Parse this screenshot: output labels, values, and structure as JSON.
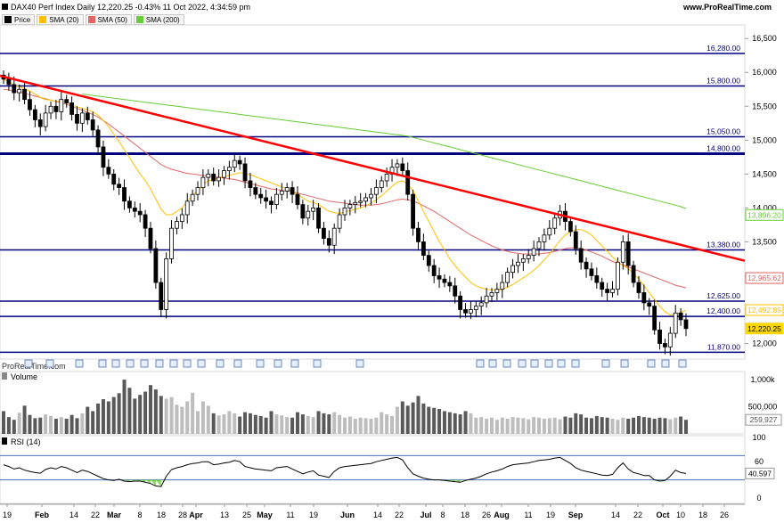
{
  "header": {
    "title": "DAX40 Perf Index Daily 12,220.25 -0.43% 11 Oct 2022, 4:34:59 pm",
    "site": "www.ProRealTime.com",
    "watermark": "ProRealTime.com"
  },
  "legend": [
    {
      "label": "Price",
      "color": "#000000"
    },
    {
      "label": "SMA (20)",
      "color": "#ffc000"
    },
    {
      "label": "SMA (50)",
      "color": "#e06666"
    },
    {
      "label": "SMA (200)",
      "color": "#66cc33"
    }
  ],
  "panels": {
    "volume_label": "Volume",
    "rsi_label": "RSI (14)"
  },
  "chart_data": [
    {
      "type": "line",
      "name": "price",
      "y_ticks": [
        "16,500",
        "16,000",
        "15,500",
        "15,000",
        "14,500",
        "14,000",
        "13,500",
        "13,000",
        "12,500",
        "12,000"
      ],
      "y_tick_values": [
        16500,
        16000,
        15500,
        15000,
        14500,
        14000,
        13500,
        13000,
        12500,
        12000
      ],
      "ylim": [
        11770,
        16700
      ],
      "x_labels": [
        "19",
        "Feb",
        "14",
        "22",
        "Mar",
        "8",
        "18",
        "28",
        "Apr",
        "13",
        "25",
        "May",
        "11",
        "19",
        "Jun",
        "14",
        "22",
        "Jul",
        "8",
        "18",
        "26",
        "Aug",
        "11",
        "19",
        "Sep",
        "14",
        "22",
        "Oct",
        "10",
        "18",
        "26"
      ],
      "horizontal_levels": [
        {
          "value": 16280,
          "label": "16,280.00"
        },
        {
          "value": 15800,
          "label": "15,800.00"
        },
        {
          "value": 15050,
          "label": "15,050.00"
        },
        {
          "value": 14800,
          "label": "14,800.00"
        },
        {
          "value": 13380,
          "label": "13,380.00"
        },
        {
          "value": 12625,
          "label": "12,625.00"
        },
        {
          "value": 12400,
          "label": "12,400.00"
        },
        {
          "value": 11870,
          "label": "11,870.00"
        }
      ],
      "trendline": {
        "from": 15950,
        "to": 13220,
        "color": "#ff0000"
      },
      "badges": [
        {
          "label": "13,896.20",
          "value": 13896.2,
          "color": "#66cc33"
        },
        {
          "label": "12,965.62",
          "value": 12965.62,
          "color": "#e06666"
        },
        {
          "label": "12,492.89",
          "value": 12492.89,
          "color": "#ffc000"
        },
        {
          "label": "12,220.25",
          "value": 12220.25,
          "color": "#ffd700"
        }
      ],
      "close": [
        15900,
        15820,
        15700,
        15750,
        15600,
        15450,
        15300,
        15200,
        15400,
        15500,
        15420,
        15600,
        15550,
        15380,
        15250,
        15400,
        15300,
        15150,
        14900,
        14600,
        14500,
        14350,
        14300,
        14100,
        14000,
        13950,
        13900,
        13700,
        13400,
        12900,
        12500,
        13250,
        13700,
        13800,
        13900,
        14100,
        14200,
        14300,
        14450,
        14500,
        14400,
        14450,
        14550,
        14600,
        14700,
        14650,
        14400,
        14300,
        14200,
        14150,
        14100,
        14050,
        14200,
        14250,
        14300,
        14200,
        14050,
        13850,
        13950,
        14000,
        13700,
        13550,
        13450,
        13700,
        13900,
        14000,
        14050,
        14080,
        14100,
        14150,
        14200,
        14300,
        14400,
        14500,
        14600,
        14650,
        14550,
        14200,
        13700,
        13500,
        13300,
        13150,
        13000,
        12950,
        12900,
        12850,
        12700,
        12500,
        12450,
        12500,
        12550,
        12600,
        12700,
        12750,
        12800,
        12900,
        13050,
        13150,
        13200,
        13250,
        13300,
        13400,
        13500,
        13600,
        13700,
        13850,
        13950,
        13800,
        13650,
        13400,
        13200,
        13100,
        13000,
        12900,
        12800,
        12750,
        12800,
        13200,
        13500,
        13150,
        12900,
        12750,
        12600,
        12550,
        12200,
        12000,
        11950,
        12150,
        12450,
        12350,
        12220
      ],
      "sma20": [
        15900,
        15860,
        15810,
        15790,
        15760,
        15720,
        15680,
        15630,
        15600,
        15590,
        15570,
        15580,
        15560,
        15520,
        15490,
        15470,
        15450,
        15420,
        15370,
        15290,
        15200,
        15090,
        14980,
        14860,
        14740,
        14620,
        14500,
        14400,
        14280,
        14130,
        13980,
        13900,
        13900,
        13950,
        14000,
        14100,
        14180,
        14260,
        14340,
        14400,
        14420,
        14440,
        14460,
        14480,
        14500,
        14520,
        14510,
        14490,
        14460,
        14430,
        14400,
        14370,
        14340,
        14310,
        14280,
        14250,
        14200,
        14150,
        14100,
        14080,
        14050,
        14000,
        13950,
        13930,
        13920,
        13940,
        13960,
        13980,
        14000,
        14030,
        14070,
        14120,
        14180,
        14250,
        14320,
        14380,
        14400,
        14350,
        14250,
        14100,
        13950,
        13800,
        13650,
        13500,
        13380,
        13250,
        13150,
        13060,
        12980,
        12900,
        12850,
        12820,
        12800,
        12790,
        12790,
        12800,
        12830,
        12870,
        12920,
        12970,
        13020,
        13080,
        13150,
        13230,
        13320,
        13420,
        13520,
        13600,
        13650,
        13680,
        13680,
        13650,
        13600,
        13520,
        13440,
        13360,
        13280,
        13200,
        13150,
        13100,
        13030,
        12950,
        12850,
        12750,
        12650,
        12550,
        12470,
        12420,
        12430,
        12460,
        12490
      ],
      "sma50": [
        15750,
        15740,
        15720,
        15710,
        15690,
        15670,
        15650,
        15630,
        15610,
        15590,
        15570,
        15550,
        15530,
        15500,
        15470,
        15440,
        15410,
        15380,
        15340,
        15290,
        15240,
        15180,
        15120,
        15060,
        15000,
        14940,
        14880,
        14820,
        14760,
        14700,
        14640,
        14600,
        14570,
        14550,
        14530,
        14510,
        14500,
        14490,
        14480,
        14470,
        14460,
        14450,
        14440,
        14430,
        14420,
        14400,
        14380,
        14360,
        14340,
        14320,
        14300,
        14280,
        14270,
        14260,
        14250,
        14240,
        14220,
        14200,
        14180,
        14160,
        14140,
        14120,
        14100,
        14090,
        14080,
        14070,
        14060,
        14050,
        14040,
        14040,
        14040,
        14050,
        14060,
        14080,
        14100,
        14120,
        14130,
        14120,
        14100,
        14070,
        14030,
        13990,
        13950,
        13900,
        13850,
        13800,
        13750,
        13700,
        13650,
        13600,
        13560,
        13520,
        13480,
        13440,
        13410,
        13380,
        13360,
        13340,
        13330,
        13320,
        13320,
        13320,
        13320,
        13330,
        13340,
        13360,
        13380,
        13400,
        13410,
        13410,
        13400,
        13380,
        13350,
        13320,
        13290,
        13250,
        13210,
        13180,
        13160,
        13130,
        13100,
        13070,
        13040,
        13010,
        12980,
        12950,
        12920,
        12890,
        12860,
        12840,
        12820
      ],
      "sma200_start_index": 15,
      "sma200": [
        15680,
        15670,
        15660,
        15650,
        15640,
        15630,
        15620,
        15610,
        15600,
        15590,
        15580,
        15570,
        15560,
        15550,
        15540,
        15530,
        15520,
        15510,
        15500,
        15490,
        15480,
        15470,
        15460,
        15450,
        15440,
        15430,
        15420,
        15410,
        15400,
        15390,
        15380,
        15370,
        15360,
        15350,
        15340,
        15330,
        15320,
        15310,
        15300,
        15290,
        15280,
        15270,
        15260,
        15250,
        15240,
        15230,
        15220,
        15210,
        15200,
        15190,
        15180,
        15170,
        15160,
        15150,
        15140,
        15130,
        15120,
        15110,
        15100,
        15090,
        15080,
        15070,
        15060,
        15040,
        15020,
        15000,
        14980,
        14960,
        14940,
        14920,
        14900,
        14880,
        14860,
        14840,
        14820,
        14800,
        14780,
        14760,
        14740,
        14720,
        14700,
        14680,
        14660,
        14640,
        14620,
        14600,
        14580,
        14560,
        14540,
        14520,
        14500,
        14480,
        14460,
        14440,
        14420,
        14400,
        14380,
        14360,
        14340,
        14320,
        14300,
        14280,
        14260,
        14240,
        14220,
        14200,
        14180,
        14160,
        14140,
        14120,
        14100,
        14080,
        14060,
        14040,
        14020,
        13990
      ]
    },
    {
      "type": "bar",
      "name": "volume",
      "y_ticks": [
        "1,000k",
        "500,000"
      ],
      "y_tick_values": [
        1000000,
        500000
      ],
      "ylim": [
        0,
        1150000
      ],
      "last_label": "259,927",
      "last_value": 259927,
      "values": [
        420000,
        310000,
        260000,
        390000,
        520000,
        350000,
        290000,
        300000,
        360000,
        330000,
        280000,
        310000,
        280000,
        350000,
        290000,
        380000,
        500000,
        420000,
        560000,
        640000,
        600000,
        680000,
        750000,
        1000000,
        850000,
        650000,
        720000,
        780000,
        900000,
        820000,
        700000,
        650000,
        680000,
        540000,
        500000,
        600000,
        760000,
        420000,
        600000,
        520000,
        380000,
        340000,
        360000,
        420000,
        380000,
        320000,
        400000,
        380000,
        350000,
        330000,
        300000,
        420000,
        360000,
        340000,
        310000,
        300000,
        400000,
        360000,
        330000,
        310000,
        420000,
        380000,
        360000,
        400000,
        350000,
        300000,
        320000,
        280000,
        300000,
        290000,
        280000,
        300000,
        400000,
        360000,
        330000,
        500000,
        600000,
        520000,
        580000,
        700000,
        560000,
        500000,
        480000,
        460000,
        420000,
        400000,
        380000,
        360000,
        420000,
        380000,
        300000,
        310000,
        280000,
        300000,
        260000,
        300000,
        280000,
        310000,
        300000,
        290000,
        270000,
        310000,
        300000,
        280000,
        290000,
        300000,
        270000,
        320000,
        300000,
        380000,
        360000,
        300000,
        290000,
        330000,
        310000,
        300000,
        280000,
        260000,
        300000,
        280000,
        300000,
        330000,
        310000,
        300000,
        280000,
        300000,
        290000,
        270000,
        300000,
        320000,
        259927
      ]
    },
    {
      "type": "line",
      "name": "rsi",
      "y_ticks": [
        "100",
        "60",
        "40",
        "0"
      ],
      "y_tick_values": [
        100,
        60,
        40,
        0
      ],
      "ylim": [
        0,
        100
      ],
      "overbought": 70,
      "oversold": 30,
      "last_label": "40.597",
      "last_value": 40.597,
      "values": [
        55,
        52,
        48,
        50,
        46,
        44,
        42,
        41,
        47,
        50,
        48,
        52,
        50,
        46,
        42,
        46,
        44,
        40,
        36,
        32,
        30,
        29,
        31,
        28,
        27,
        28,
        28,
        26,
        24,
        20,
        19,
        36,
        47,
        50,
        52,
        55,
        57,
        58,
        60,
        60,
        55,
        56,
        58,
        59,
        62,
        60,
        52,
        50,
        48,
        47,
        46,
        45,
        50,
        51,
        52,
        48,
        44,
        40,
        43,
        45,
        38,
        36,
        34,
        44,
        50,
        52,
        53,
        54,
        55,
        56,
        57,
        60,
        62,
        64,
        66,
        67,
        63,
        50,
        40,
        36,
        33,
        31,
        30,
        30,
        29,
        28,
        27,
        26,
        29,
        31,
        33,
        36,
        40,
        43,
        45,
        48,
        52,
        55,
        56,
        57,
        58,
        60,
        62,
        63,
        64,
        66,
        67,
        62,
        57,
        50,
        46,
        44,
        42,
        40,
        38,
        37,
        39,
        50,
        58,
        48,
        42,
        40,
        37,
        37,
        30,
        28,
        29,
        36,
        46,
        42,
        40.597
      ]
    }
  ]
}
